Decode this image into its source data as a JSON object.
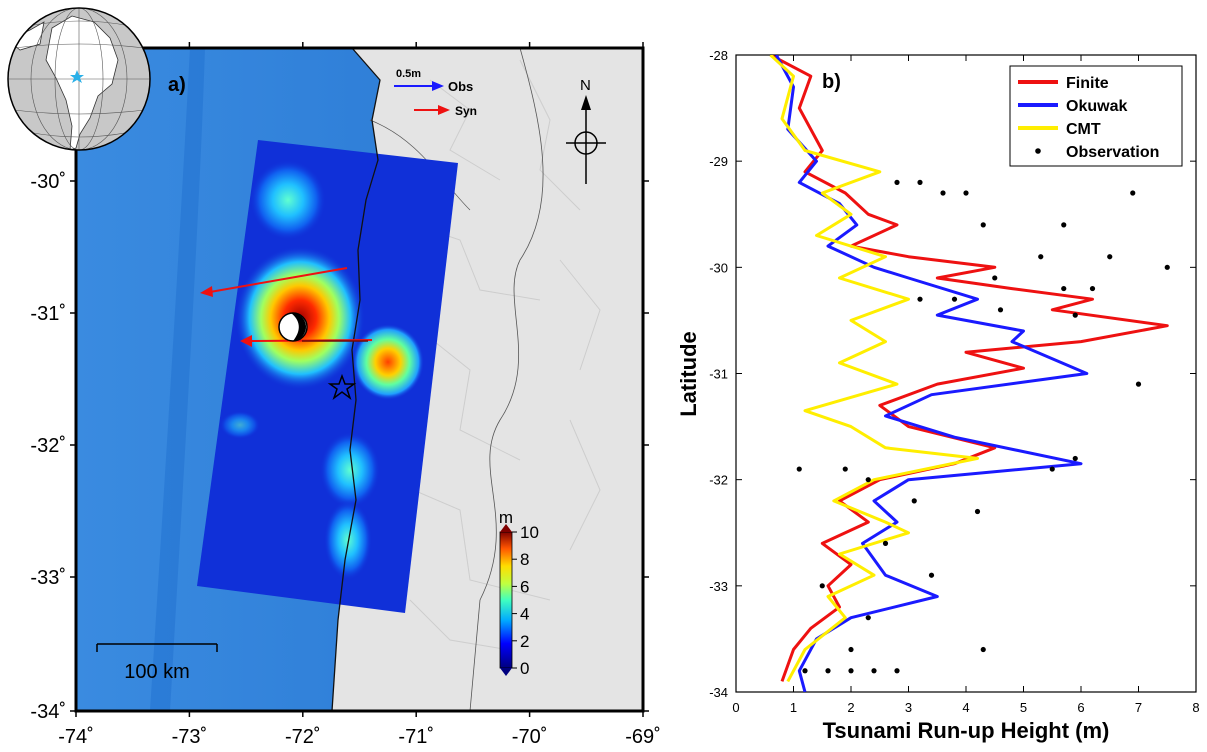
{
  "panel_a": {
    "label": "a)",
    "x_ticks": [
      "-74˚",
      "-73˚",
      "-72˚",
      "-71˚",
      "-70˚",
      "-69˚"
    ],
    "y_ticks": [
      "-30˚",
      "-31˚",
      "-32˚",
      "-33˚",
      "-34˚"
    ],
    "legend": {
      "scale_label": "0.5m",
      "obs_label": "Obs",
      "syn_label": "Syn"
    },
    "north_label": "N",
    "scale_bar_label": "100 km",
    "colorbar": {
      "unit": "m",
      "ticks": [
        "10",
        "8",
        "6",
        "4",
        "2",
        "0"
      ]
    },
    "colors": {
      "obs": "#1a1aff",
      "syn": "#ee1111",
      "ocean": "#2f80dc",
      "land": "#e6e6e6"
    }
  },
  "chart_data": {
    "type": "line",
    "panel_label": "b)",
    "xlabel": "Tsunami Run-up Height (m)",
    "ylabel": "Latitude",
    "xlim": [
      0,
      8
    ],
    "ylim": [
      -34,
      -28
    ],
    "x_ticks": [
      "0",
      "1",
      "2",
      "3",
      "4",
      "5",
      "6",
      "7",
      "8"
    ],
    "y_ticks": [
      "-28",
      "-29",
      "-30",
      "-31",
      "-32",
      "-33",
      "-34"
    ],
    "legend_position": "top-right",
    "series": [
      {
        "name": "Finite",
        "color": "#ee1111",
        "points": [
          [
            0.6,
            -28.0
          ],
          [
            1.3,
            -28.2
          ],
          [
            1.1,
            -28.5
          ],
          [
            1.5,
            -28.9
          ],
          [
            1.2,
            -29.1
          ],
          [
            1.9,
            -29.3
          ],
          [
            2.3,
            -29.5
          ],
          [
            2.8,
            -29.6
          ],
          [
            2.0,
            -29.8
          ],
          [
            3.0,
            -29.9
          ],
          [
            4.5,
            -30.0
          ],
          [
            3.5,
            -30.1
          ],
          [
            4.8,
            -30.2
          ],
          [
            6.2,
            -30.3
          ],
          [
            5.5,
            -30.4
          ],
          [
            7.5,
            -30.55
          ],
          [
            6.0,
            -30.7
          ],
          [
            4.0,
            -30.8
          ],
          [
            5.0,
            -30.95
          ],
          [
            3.5,
            -31.1
          ],
          [
            2.5,
            -31.3
          ],
          [
            3.0,
            -31.5
          ],
          [
            4.5,
            -31.7
          ],
          [
            3.8,
            -31.85
          ],
          [
            2.5,
            -32.0
          ],
          [
            1.8,
            -32.2
          ],
          [
            2.3,
            -32.4
          ],
          [
            1.5,
            -32.6
          ],
          [
            2.0,
            -32.8
          ],
          [
            1.6,
            -33.0
          ],
          [
            1.8,
            -33.2
          ],
          [
            1.3,
            -33.4
          ],
          [
            1.0,
            -33.6
          ],
          [
            0.8,
            -33.9
          ]
        ]
      },
      {
        "name": "Okuwak",
        "color": "#1a1aff",
        "points": [
          [
            0.7,
            -28.0
          ],
          [
            1.0,
            -28.3
          ],
          [
            0.9,
            -28.7
          ],
          [
            1.4,
            -29.0
          ],
          [
            1.1,
            -29.2
          ],
          [
            1.8,
            -29.4
          ],
          [
            2.1,
            -29.6
          ],
          [
            1.6,
            -29.8
          ],
          [
            2.4,
            -30.0
          ],
          [
            3.0,
            -30.1
          ],
          [
            4.2,
            -30.3
          ],
          [
            3.5,
            -30.45
          ],
          [
            5.0,
            -30.6
          ],
          [
            4.8,
            -30.7
          ],
          [
            6.1,
            -31.0
          ],
          [
            3.4,
            -31.2
          ],
          [
            2.6,
            -31.4
          ],
          [
            3.8,
            -31.6
          ],
          [
            6.0,
            -31.85
          ],
          [
            3.0,
            -32.0
          ],
          [
            2.4,
            -32.2
          ],
          [
            2.8,
            -32.4
          ],
          [
            2.2,
            -32.6
          ],
          [
            2.6,
            -32.9
          ],
          [
            3.5,
            -33.1
          ],
          [
            2.0,
            -33.3
          ],
          [
            1.4,
            -33.5
          ],
          [
            1.1,
            -33.8
          ],
          [
            1.2,
            -34.0
          ]
        ]
      },
      {
        "name": "CMT",
        "color": "#ffee00",
        "points": [
          [
            0.6,
            -28.0
          ],
          [
            1.0,
            -28.2
          ],
          [
            0.8,
            -28.6
          ],
          [
            1.2,
            -28.9
          ],
          [
            2.5,
            -29.1
          ],
          [
            1.5,
            -29.3
          ],
          [
            2.0,
            -29.5
          ],
          [
            1.4,
            -29.7
          ],
          [
            2.6,
            -29.9
          ],
          [
            1.8,
            -30.1
          ],
          [
            3.0,
            -30.3
          ],
          [
            2.0,
            -30.5
          ],
          [
            2.6,
            -30.7
          ],
          [
            1.8,
            -30.9
          ],
          [
            2.8,
            -31.1
          ],
          [
            1.2,
            -31.35
          ],
          [
            2.0,
            -31.5
          ],
          [
            2.6,
            -31.7
          ],
          [
            4.2,
            -31.8
          ],
          [
            2.4,
            -32.0
          ],
          [
            1.7,
            -32.2
          ],
          [
            2.6,
            -32.4
          ],
          [
            3.0,
            -32.5
          ],
          [
            1.8,
            -32.7
          ],
          [
            2.4,
            -32.9
          ],
          [
            1.6,
            -33.1
          ],
          [
            1.9,
            -33.3
          ],
          [
            1.2,
            -33.6
          ],
          [
            0.9,
            -33.9
          ]
        ]
      },
      {
        "name": "Observation",
        "color": "#000000",
        "marker": "dot",
        "points": [
          [
            2.8,
            -29.2
          ],
          [
            3.2,
            -29.2
          ],
          [
            3.6,
            -29.3
          ],
          [
            4.0,
            -29.3
          ],
          [
            6.9,
            -29.3
          ],
          [
            4.3,
            -29.6
          ],
          [
            5.7,
            -29.6
          ],
          [
            6.5,
            -29.9
          ],
          [
            5.3,
            -29.9
          ],
          [
            7.5,
            -30.0
          ],
          [
            4.5,
            -30.1
          ],
          [
            5.7,
            -30.2
          ],
          [
            6.2,
            -30.2
          ],
          [
            3.2,
            -30.3
          ],
          [
            3.8,
            -30.3
          ],
          [
            4.6,
            -30.4
          ],
          [
            5.9,
            -30.45
          ],
          [
            7.0,
            -31.1
          ],
          [
            1.1,
            -31.9
          ],
          [
            1.9,
            -31.9
          ],
          [
            2.3,
            -32.0
          ],
          [
            5.5,
            -31.9
          ],
          [
            5.9,
            -31.8
          ],
          [
            3.1,
            -32.2
          ],
          [
            4.2,
            -32.3
          ],
          [
            2.6,
            -32.6
          ],
          [
            3.4,
            -32.9
          ],
          [
            1.5,
            -33.0
          ],
          [
            2.3,
            -33.3
          ],
          [
            2.0,
            -33.6
          ],
          [
            4.3,
            -33.6
          ],
          [
            1.2,
            -33.8
          ],
          [
            1.6,
            -33.8
          ],
          [
            2.0,
            -33.8
          ],
          [
            2.4,
            -33.8
          ],
          [
            2.8,
            -33.8
          ]
        ]
      }
    ]
  }
}
